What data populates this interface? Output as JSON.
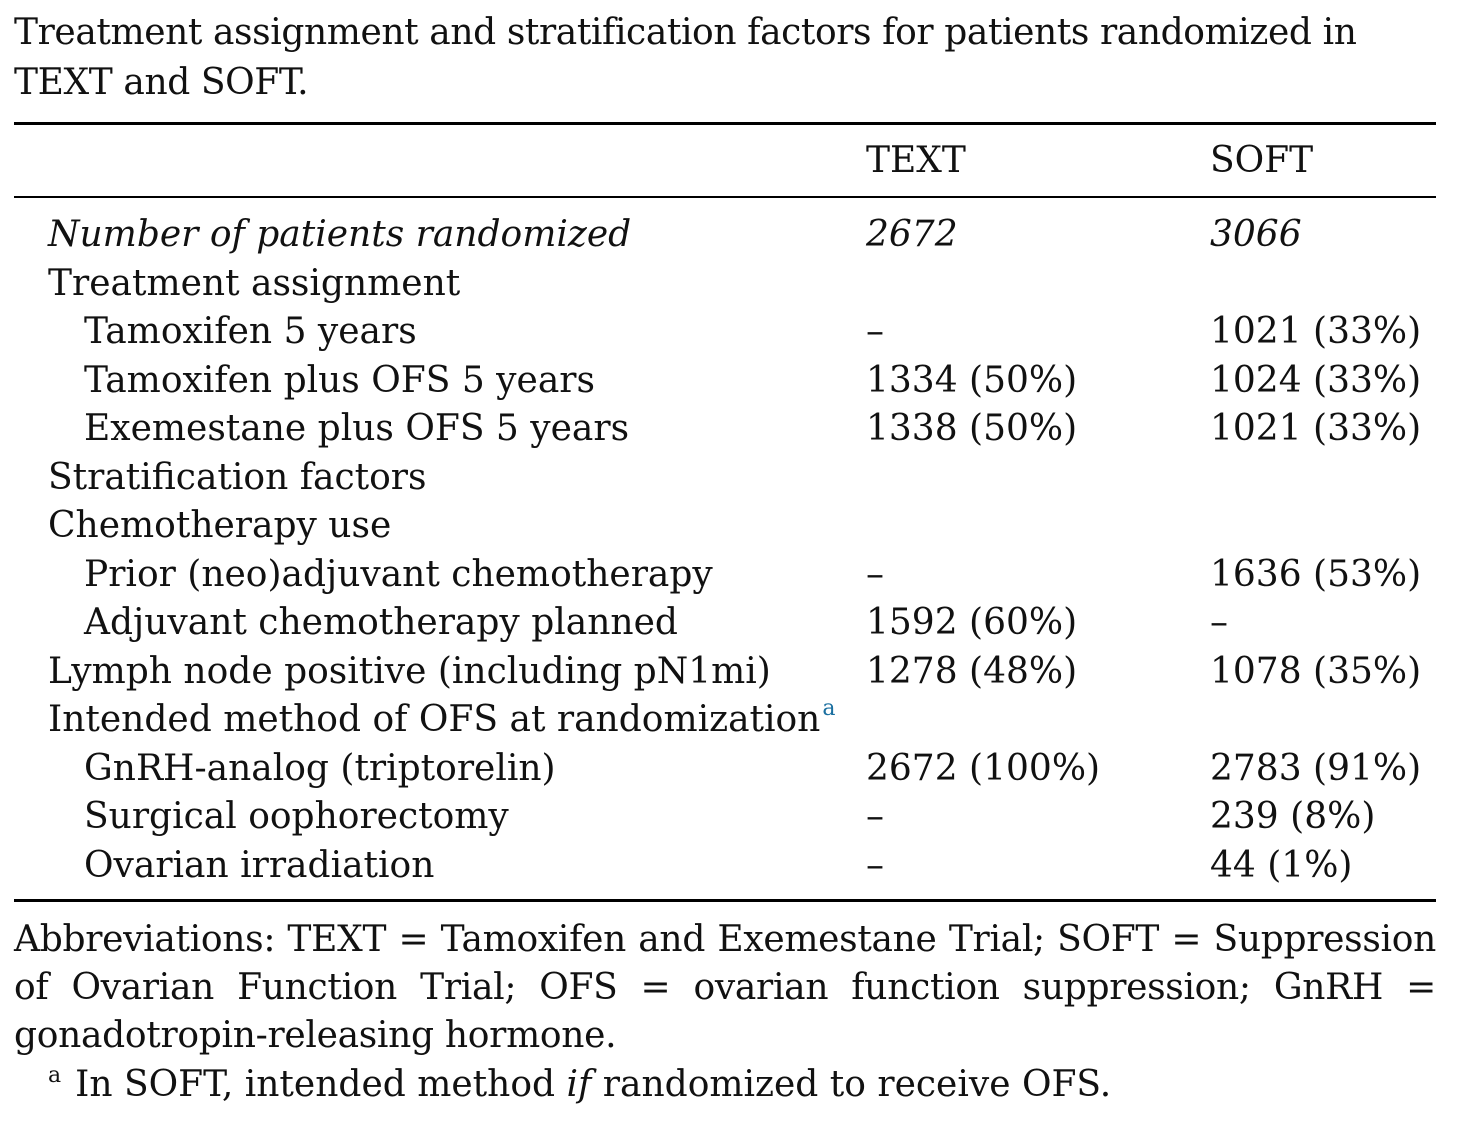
{
  "caption": "Treatment assignment and stratification factors for patients randomized in TEXT and SOFT.",
  "columns": {
    "text": "TEXT",
    "soft": "SOFT"
  },
  "rows": [
    {
      "label": "Number of patients randomized",
      "text": "2672",
      "soft": "3066",
      "style": "italic",
      "indent": false
    },
    {
      "label": "Treatment assignment",
      "text": "",
      "soft": "",
      "indent": false
    },
    {
      "label": "Tamoxifen 5 years",
      "text": "–",
      "soft": "1021 (33%)",
      "indent": true
    },
    {
      "label": "Tamoxifen plus OFS 5 years",
      "text": "1334 (50%)",
      "soft": "1024 (33%)",
      "indent": true
    },
    {
      "label": "Exemestane plus OFS 5 years",
      "text": "1338 (50%)",
      "soft": "1021 (33%)",
      "indent": true
    },
    {
      "label": "Stratification factors",
      "text": "",
      "soft": "",
      "indent": false
    },
    {
      "label": "Chemotherapy use",
      "text": "",
      "soft": "",
      "indent": false
    },
    {
      "label": "Prior (neo)adjuvant chemotherapy",
      "text": "–",
      "soft": "1636 (53%)",
      "indent": true
    },
    {
      "label": "Adjuvant chemotherapy planned",
      "text": "1592 (60%)",
      "soft": "–",
      "indent": true
    },
    {
      "label": "Lymph node positive (including pN1mi)",
      "text": "1278 (48%)",
      "soft": "1078 (35%)",
      "indent": false
    },
    {
      "label": "Intended method of OFS at randomization",
      "sup": "a",
      "text": "",
      "soft": "",
      "indent": false
    },
    {
      "label": "GnRH-analog (triptorelin)",
      "text": "2672 (100%)",
      "soft": "2783 (91%)",
      "indent": true
    },
    {
      "label": "Surgical oophorectomy",
      "text": "–",
      "soft": "239 (8%)",
      "indent": true
    },
    {
      "label": "Ovarian irradiation",
      "text": "–",
      "soft": "44 (1%)",
      "indent": true
    }
  ],
  "abbreviations": "Abbreviations: TEXT = Tamoxifen and Exemestane Trial; SOFT = Suppression of Ovarian Function Trial; OFS = ovarian function suppression; GnRH = gonadotropin-releasing hormone.",
  "footnote": {
    "marker": "a",
    "before": "In SOFT, intended method ",
    "emphasis": "if",
    "after": " randomized to receive OFS."
  }
}
